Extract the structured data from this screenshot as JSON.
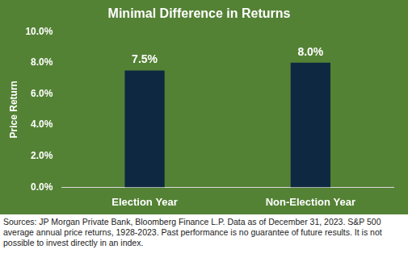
{
  "chart_data": {
    "type": "bar",
    "title": "Minimal Difference in Returns",
    "y_label": "Price Return",
    "categories": [
      "Election Year",
      "Non-Election Year"
    ],
    "values": [
      7.5,
      8.0
    ],
    "value_labels": [
      "7.5%",
      "8.0%"
    ],
    "color": "#0e2841",
    "ylim": [
      0,
      10
    ],
    "yticks": [
      {
        "value": 0,
        "label": "0.0%"
      },
      {
        "value": 2,
        "label": "2.0%"
      },
      {
        "value": 4,
        "label": "4.0%"
      },
      {
        "value": 6,
        "label": "6.0%"
      },
      {
        "value": 8,
        "label": "8.0%"
      },
      {
        "value": 10,
        "label": "10.0%"
      }
    ],
    "grid": false,
    "data_labels": true,
    "source": "Sources: JP Morgan Private Bank, Bloomberg Finance L.P. Data as of December 31, 2023. S&P 500 average annual price returns, 1928-2023. Past performance is no guarantee of future results. It is not possible to invest directly in an index."
  }
}
